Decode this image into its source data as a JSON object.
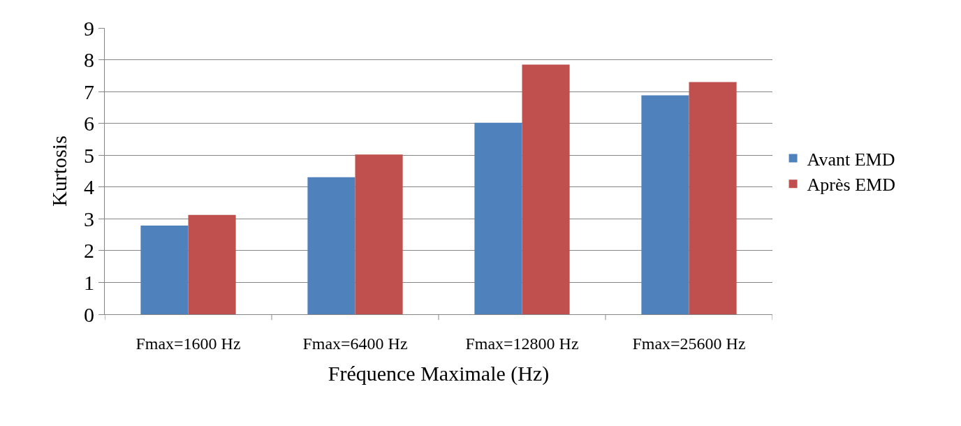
{
  "chart_data": {
    "type": "bar",
    "xlabel": "Fréquence Maximale (Hz)",
    "ylabel": "Kurtosis",
    "categories": [
      "Fmax=1600 Hz",
      "Fmax=6400 Hz",
      "Fmax=12800 Hz",
      "Fmax=25600 Hz"
    ],
    "series": [
      {
        "name": "Avant EMD",
        "color": "#4f81bd",
        "values": [
          2.79,
          4.31,
          6.02,
          6.88
        ]
      },
      {
        "name": "Après EMD",
        "color": "#c0504d",
        "values": [
          3.12,
          5.02,
          7.85,
          7.3
        ]
      }
    ],
    "ylim": [
      0,
      9
    ],
    "yticks": [
      0,
      1,
      2,
      3,
      4,
      5,
      6,
      7,
      8,
      9
    ],
    "grid": "y",
    "legend": "right"
  }
}
